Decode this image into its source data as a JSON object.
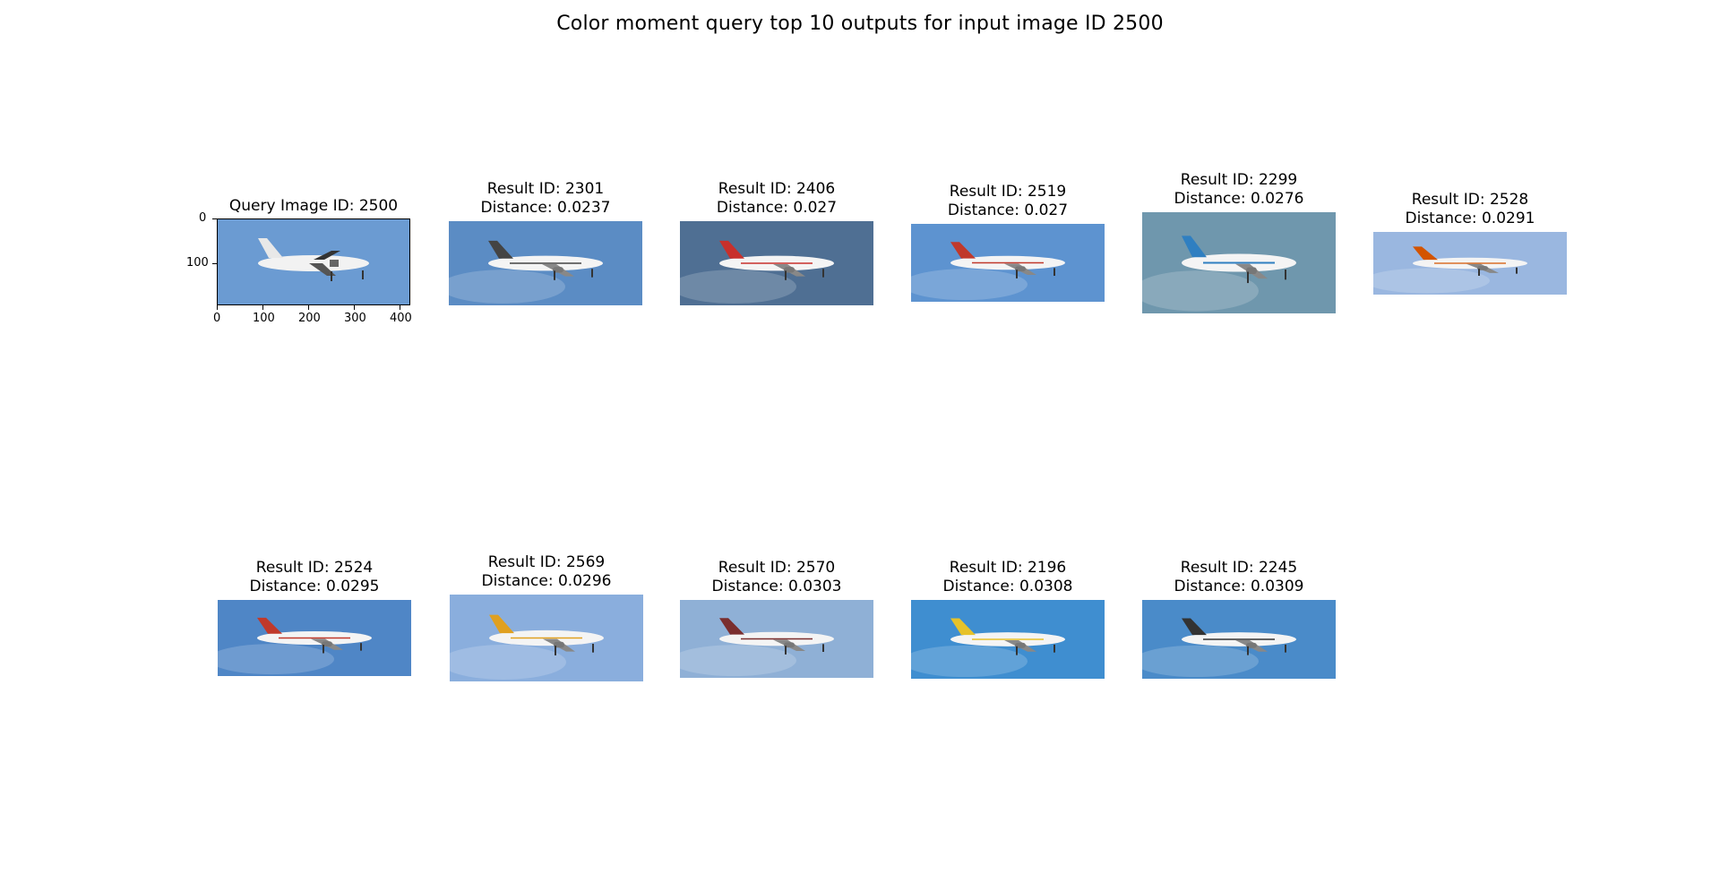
{
  "figure": {
    "title": "Color moment query top 10 outputs for input image ID 2500"
  },
  "query": {
    "caption": "Query Image ID: 2500",
    "sky": "#6b9bd2",
    "xticks": [
      "0",
      "100",
      "200",
      "300",
      "400"
    ],
    "yticks": [
      "0",
      "100"
    ]
  },
  "results": [
    {
      "id_line": "Result ID: 2301",
      "dist_line": "Distance: 0.0237",
      "sky": "#5b8cc4",
      "livery": "#444444"
    },
    {
      "id_line": "Result ID: 2406",
      "dist_line": "Distance: 0.027",
      "sky": "#4f6f93",
      "livery": "#c8302c"
    },
    {
      "id_line": "Result ID: 2519",
      "dist_line": "Distance: 0.027",
      "sky": "#5d93d0",
      "livery": "#c0392b"
    },
    {
      "id_line": "Result ID: 2299",
      "dist_line": "Distance: 0.0276",
      "sky": "#6f97ad",
      "livery": "#2f7fc1"
    },
    {
      "id_line": "Result ID: 2528",
      "dist_line": "Distance: 0.0291",
      "sky": "#9ab7e0",
      "livery": "#d35400"
    },
    {
      "id_line": "Result ID: 2524",
      "dist_line": "Distance: 0.0295",
      "sky": "#4f86c6",
      "livery": "#c0392b"
    },
    {
      "id_line": "Result ID: 2569",
      "dist_line": "Distance: 0.0296",
      "sky": "#8aaedd",
      "livery": "#e0a020"
    },
    {
      "id_line": "Result ID: 2570",
      "dist_line": "Distance: 0.0303",
      "sky": "#8fb0d6",
      "livery": "#7a2e2e"
    },
    {
      "id_line": "Result ID: 2196",
      "dist_line": "Distance: 0.0308",
      "sky": "#3f8ed0",
      "livery": "#e6c229"
    },
    {
      "id_line": "Result ID: 2245",
      "dist_line": "Distance: 0.0309",
      "sky": "#4a8bc9",
      "livery": "#333333"
    }
  ]
}
